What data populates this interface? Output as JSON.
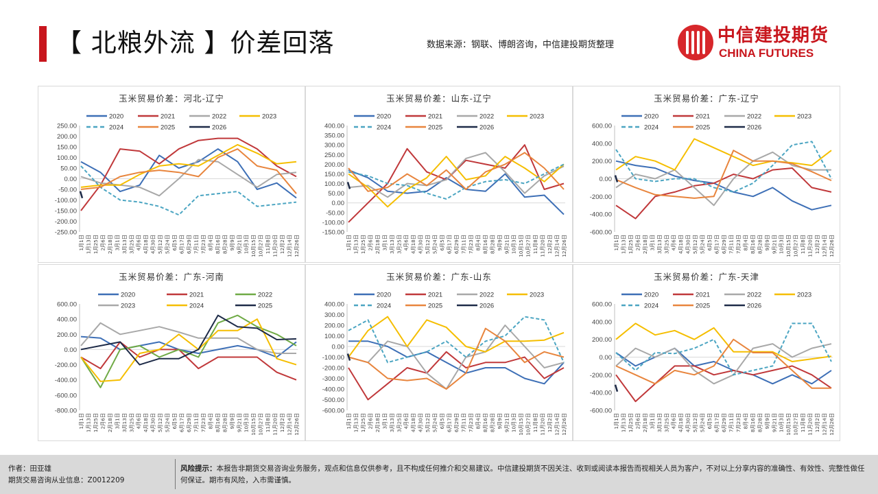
{
  "header": {
    "title": "【 北粮外流 】价差回落",
    "source": "数据来源：钢联、博朗咨询，中信建投期货整理",
    "logo_cn": "中信建投期货",
    "logo_en": "CHINA FUTURES"
  },
  "footer": {
    "author": "作者：田亚雄",
    "license": "期货交易咨询从业信息：Z0012209",
    "risk_label": "风险提示：",
    "risk_text": "本报告非期货交易咨询业务服务，观点和信息仅供参考，且不构成任何推介和交易建议。中信建投期货不因关注、收到或阅读本报告而视相关人员为客户，不对以上分享内容的准确性、有效性、完整性做任何保证。期市有风险，入市需谨慎。"
  },
  "x_axis_ticks": [
    "1月1日",
    "1月13日",
    "1月25日",
    "2月6日",
    "2月18日",
    "3月1日",
    "3月13日",
    "3月25日",
    "4月6日",
    "4月18日",
    "4月30日",
    "5月12日",
    "5月24日",
    "6月5日",
    "6月17日",
    "6月29日",
    "7月11日",
    "7月23日",
    "8月4日",
    "8月16日",
    "8月28日",
    "9月9日",
    "9月21日",
    "10月3日",
    "10月15日",
    "10月27日",
    "11月8日",
    "11月20日",
    "12月2日",
    "12月14日",
    "12月26日"
  ],
  "chart_data": [
    {
      "type": "line",
      "title": "玉米贸易价差：河北-辽宁",
      "ylim": [
        -250,
        250
      ],
      "yticks": [
        "250.00",
        "200.00",
        "150.00",
        "100.00",
        "50.00",
        "0.00",
        "-50.00",
        "-100.00",
        "-150.00",
        "-200.00",
        "-250.00"
      ],
      "series": [
        {
          "name": "2020",
          "color": "#3D6FB6",
          "dashed": false,
          "values": [
            80,
            30,
            -60,
            -30,
            110,
            50,
            80,
            140,
            80,
            -50,
            -20,
            -90
          ]
        },
        {
          "name": "2021",
          "color": "#C0383A",
          "dashed": false,
          "values": [
            -150,
            -30,
            140,
            130,
            70,
            140,
            180,
            190,
            190,
            140,
            60,
            10
          ]
        },
        {
          "name": "2022",
          "color": "#A8A8A8",
          "dashed": false,
          "values": [
            10,
            -20,
            -30,
            -40,
            -80,
            0,
            90,
            80,
            20,
            -40,
            20,
            30
          ]
        },
        {
          "name": "2023",
          "color": "#F5BE00",
          "dashed": false,
          "values": [
            -40,
            -30,
            -30,
            20,
            60,
            70,
            60,
            110,
            160,
            120,
            70,
            80
          ]
        },
        {
          "name": "2024",
          "color": "#4BA5C2",
          "dashed": true,
          "values": [
            60,
            -40,
            -100,
            -110,
            -130,
            -170,
            -80,
            -70,
            -60,
            -130,
            -120,
            -110
          ]
        },
        {
          "name": "2025",
          "color": "#E8853D",
          "dashed": false,
          "values": [
            -50,
            -40,
            10,
            30,
            40,
            30,
            10,
            100,
            140,
            60,
            40,
            -70
          ]
        },
        {
          "name": "2026",
          "color": "#1E2B48",
          "dashed": false,
          "values": [
            -75
          ]
        }
      ]
    },
    {
      "type": "line",
      "title": "玉米贸易价差：山东-辽宁",
      "ylim": [
        -150,
        400
      ],
      "yticks": [
        "400.00",
        "350.00",
        "300.00",
        "250.00",
        "200.00",
        "150.00",
        "100.00",
        "50.00",
        "0.00",
        "-50.00",
        "-100.00",
        "-150.00"
      ],
      "series": [
        {
          "name": "2020",
          "color": "#3D6FB6",
          "dashed": false,
          "values": [
            170,
            130,
            60,
            50,
            60,
            130,
            70,
            60,
            150,
            30,
            40,
            -60
          ]
        },
        {
          "name": "2021",
          "color": "#C0383A",
          "dashed": false,
          "values": [
            -100,
            0,
            100,
            280,
            160,
            120,
            220,
            200,
            180,
            300,
            70,
            100
          ]
        },
        {
          "name": "2022",
          "color": "#A8A8A8",
          "dashed": false,
          "values": [
            80,
            90,
            30,
            100,
            90,
            120,
            230,
            260,
            160,
            50,
            140,
            190
          ]
        },
        {
          "name": "2023",
          "color": "#F5BE00",
          "dashed": false,
          "values": [
            150,
            80,
            -20,
            70,
            130,
            240,
            120,
            140,
            240,
            180,
            110,
            200
          ]
        },
        {
          "name": "2024",
          "color": "#4BA5C2",
          "dashed": true,
          "values": [
            160,
            140,
            100,
            90,
            50,
            20,
            80,
            110,
            120,
            100,
            150,
            200
          ]
        },
        {
          "name": "2025",
          "color": "#E8853D",
          "dashed": false,
          "values": [
            180,
            60,
            80,
            150,
            90,
            170,
            70,
            160,
            200,
            260,
            180,
            70
          ]
        },
        {
          "name": "2026",
          "color": "#1E2B48",
          "dashed": false,
          "values": [
            90
          ]
        }
      ]
    },
    {
      "type": "line",
      "title": "玉米贸易价差：广东-辽宁",
      "ylim": [
        -600,
        600
      ],
      "yticks": [
        "600.00",
        "400.00",
        "200.00",
        "0.00",
        "-200.00",
        "-400.00",
        "-600.00"
      ],
      "series": [
        {
          "name": "2020",
          "color": "#3D6FB6",
          "dashed": false,
          "values": [
            200,
            150,
            120,
            30,
            -20,
            -50,
            -150,
            -200,
            -100,
            -250,
            -350,
            -300
          ]
        },
        {
          "name": "2021",
          "color": "#C0383A",
          "dashed": false,
          "values": [
            -300,
            -450,
            -200,
            -150,
            -80,
            -50,
            50,
            0,
            100,
            120,
            -100,
            -150
          ]
        },
        {
          "name": "2022",
          "color": "#A8A8A8",
          "dashed": false,
          "values": [
            -100,
            50,
            0,
            100,
            -100,
            -300,
            0,
            200,
            300,
            150,
            100,
            100
          ]
        },
        {
          "name": "2023",
          "color": "#F5BE00",
          "dashed": false,
          "values": [
            100,
            250,
            200,
            100,
            450,
            350,
            250,
            150,
            200,
            180,
            150,
            320
          ]
        },
        {
          "name": "2024",
          "color": "#4BA5C2",
          "dashed": true,
          "values": [
            330,
            0,
            -30,
            0,
            0,
            -100,
            -150,
            -50,
            150,
            380,
            420,
            0
          ]
        },
        {
          "name": "2025",
          "color": "#E8853D",
          "dashed": false,
          "values": [
            -10,
            -100,
            -180,
            -200,
            -220,
            -200,
            320,
            200,
            200,
            170,
            80,
            -20
          ]
        },
        {
          "name": "2026",
          "color": "#1E2B48",
          "dashed": false,
          "values": [
            0
          ]
        }
      ]
    },
    {
      "type": "line",
      "title": "玉米贸易价差：广东-河南",
      "ylim": [
        -800,
        600
      ],
      "yticks": [
        "600.00",
        "400.00",
        "200.00",
        "0.00",
        "-200.00",
        "-400.00",
        "-600.00",
        "-800.00"
      ],
      "series": [
        {
          "name": "2020",
          "color": "#3D6FB6",
          "dashed": false,
          "values": [
            170,
            150,
            0,
            50,
            100,
            0,
            -50,
            0,
            50,
            0,
            -100,
            100
          ]
        },
        {
          "name": "2021",
          "color": "#C0383A",
          "dashed": false,
          "values": [
            -100,
            -250,
            100,
            -100,
            0,
            0,
            -250,
            -100,
            -100,
            -100,
            -300,
            -400
          ]
        },
        {
          "name": "2022",
          "color": "#6FAA45",
          "dashed": false,
          "values": [
            -100,
            -500,
            0,
            50,
            -100,
            0,
            -100,
            350,
            450,
            300,
            200,
            50
          ]
        },
        {
          "name": "2023",
          "color": "#A8A8A8",
          "dashed": false,
          "values": [
            50,
            350,
            200,
            250,
            300,
            230,
            150,
            150,
            150,
            0,
            -50,
            -50
          ]
        },
        {
          "name": "2024",
          "color": "#F5BE00",
          "dashed": false,
          "values": [
            -100,
            -420,
            -400,
            -50,
            0,
            200,
            0,
            250,
            250,
            400,
            -120,
            -200
          ]
        },
        {
          "name": "2025",
          "color": "#1E2B48",
          "dashed": false,
          "values": [
            0,
            50,
            100,
            -200,
            -120,
            -120,
            0,
            450,
            300,
            280,
            130,
            140
          ]
        }
      ]
    },
    {
      "type": "line",
      "title": "玉米贸易价差：广东-山东",
      "ylim": [
        -600,
        400
      ],
      "yticks": [
        "400.00",
        "300.00",
        "200.00",
        "100.00",
        "0.00",
        "-100.00",
        "-200.00",
        "-300.00",
        "-400.00",
        "-500.00",
        "-600.00"
      ],
      "series": [
        {
          "name": "2020",
          "color": "#3D6FB6",
          "dashed": false,
          "values": [
            50,
            50,
            0,
            -100,
            -50,
            -150,
            -250,
            -200,
            -200,
            -300,
            -350,
            -150
          ]
        },
        {
          "name": "2021",
          "color": "#C0383A",
          "dashed": false,
          "values": [
            -200,
            -500,
            -350,
            -200,
            -250,
            -50,
            -200,
            -150,
            -150,
            -100,
            -300,
            -200
          ]
        },
        {
          "name": "2022",
          "color": "#A8A8A8",
          "dashed": false,
          "values": [
            -100,
            -150,
            50,
            0,
            -250,
            -400,
            -100,
            -50,
            200,
            0,
            -200,
            -150
          ]
        },
        {
          "name": "2023",
          "color": "#F5BE00",
          "dashed": false,
          "values": [
            -100,
            150,
            280,
            0,
            250,
            180,
            0,
            -50,
            50,
            50,
            60,
            130
          ]
        },
        {
          "name": "2024",
          "color": "#4BA5C2",
          "dashed": true,
          "values": [
            150,
            250,
            -150,
            -100,
            -50,
            50,
            -100,
            50,
            100,
            280,
            250,
            -150
          ]
        },
        {
          "name": "2025",
          "color": "#E8853D",
          "dashed": false,
          "values": [
            -100,
            -150,
            -300,
            -320,
            -300,
            -400,
            -250,
            170,
            50,
            -150,
            -50,
            -100
          ]
        },
        {
          "name": "2026",
          "color": "#1E2B48",
          "dashed": false,
          "values": [
            -100
          ]
        }
      ]
    },
    {
      "type": "line",
      "title": "玉米贸易价差：广东-天津",
      "ylim": [
        -600,
        600
      ],
      "yticks": [
        "600.00",
        "400.00",
        "200.00",
        "0.00",
        "-200.00",
        "-400.00",
        "-600.00"
      ],
      "series": [
        {
          "name": "2020",
          "color": "#3D6FB6",
          "dashed": false,
          "values": [
            50,
            -100,
            0,
            100,
            -100,
            -50,
            -150,
            -200,
            -300,
            -200,
            -300,
            -150
          ]
        },
        {
          "name": "2021",
          "color": "#C0383A",
          "dashed": false,
          "values": [
            -200,
            -500,
            -300,
            -100,
            -100,
            -200,
            -150,
            -200,
            -150,
            -100,
            -200,
            -350
          ]
        },
        {
          "name": "2022",
          "color": "#A8A8A8",
          "dashed": false,
          "values": [
            -100,
            100,
            0,
            100,
            -150,
            -300,
            -200,
            100,
            150,
            0,
            100,
            150
          ]
        },
        {
          "name": "2023",
          "color": "#F5BE00",
          "dashed": false,
          "values": [
            200,
            380,
            250,
            300,
            200,
            330,
            60,
            60,
            60,
            -50,
            -20,
            10
          ]
        },
        {
          "name": "2024",
          "color": "#4BA5C2",
          "dashed": true,
          "values": [
            50,
            -150,
            50,
            40,
            100,
            200,
            -200,
            -150,
            -100,
            380,
            380,
            -50
          ]
        },
        {
          "name": "2025",
          "color": "#E8853D",
          "dashed": false,
          "values": [
            -100,
            -200,
            -300,
            -150,
            -200,
            -100,
            200,
            50,
            50,
            -150,
            -350,
            -350
          ]
        },
        {
          "name": "2026",
          "color": "#1E2B48",
          "dashed": false,
          "values": [
            -350
          ]
        }
      ]
    }
  ]
}
